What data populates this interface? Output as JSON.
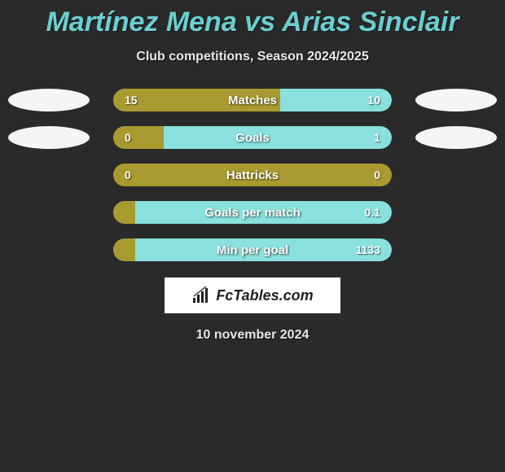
{
  "title": "Martínez Mena vs Arias Sinclair",
  "subtitle": "Club competitions, Season 2024/2025",
  "date": "10 november 2024",
  "logo_text": "FcTables.com",
  "colors": {
    "olive": "#a89a2e",
    "teal": "#89e0dc",
    "bg": "#2a2a2a"
  },
  "rows": [
    {
      "label": "Matches",
      "left_val": "15",
      "right_val": "10",
      "left_pct": 60,
      "left_color": "#a89a2e",
      "right_color": "#89e0dc",
      "show_ovals": true
    },
    {
      "label": "Goals",
      "left_val": "0",
      "right_val": "1",
      "left_pct": 18,
      "left_color": "#a89a2e",
      "right_color": "#89e0dc",
      "show_ovals": true
    },
    {
      "label": "Hattricks",
      "left_val": "0",
      "right_val": "0",
      "left_pct": 100,
      "left_color": "#a89a2e",
      "right_color": "#a89a2e",
      "show_ovals": false
    },
    {
      "label": "Goals per match",
      "left_val": "",
      "right_val": "0.1",
      "left_pct": 8,
      "left_color": "#a89a2e",
      "right_color": "#89e0dc",
      "show_ovals": false
    },
    {
      "label": "Min per goal",
      "left_val": "",
      "right_val": "1133",
      "left_pct": 8,
      "left_color": "#a89a2e",
      "right_color": "#89e0dc",
      "show_ovals": false
    }
  ]
}
